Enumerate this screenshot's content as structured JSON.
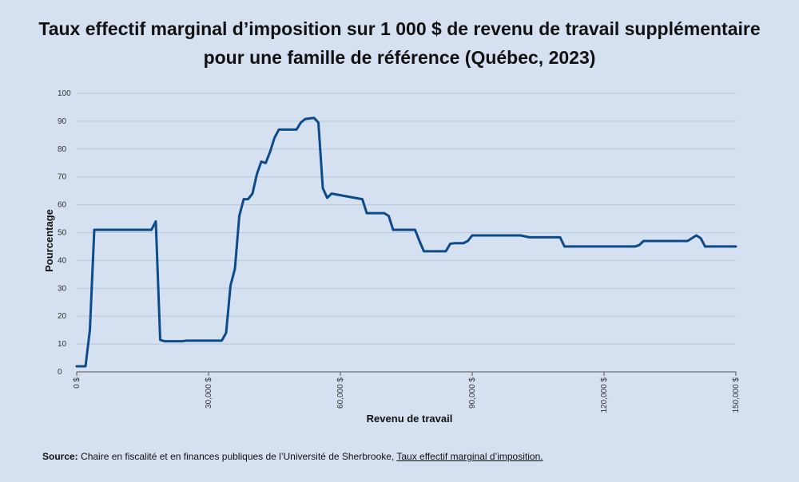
{
  "title_line1": "Taux effectif marginal d’imposition sur 1 000 $ de revenu de travail supplémentaire",
  "title_line2": "pour une famille de référence (Québec, 2023)",
  "source": {
    "label": "Source:",
    "text": " Chaire en fiscalité et en finances publiques de l’Université de Sherbrooke, ",
    "link": "Taux effectif marginal d’imposition."
  },
  "chart_data": {
    "type": "line",
    "xlabel": "Revenu de travail",
    "ylabel": "Pourcentage",
    "xlim": [
      0,
      150000
    ],
    "ylim": [
      0,
      100
    ],
    "xticks": [
      0,
      30000,
      60000,
      90000,
      120000,
      150000
    ],
    "xtick_labels": [
      "0 $",
      "30,000 $",
      "60,000 $",
      "90,000 $",
      "120,000 $",
      "150,000 $"
    ],
    "yticks": [
      0,
      10,
      20,
      30,
      40,
      50,
      60,
      70,
      80,
      90,
      100
    ],
    "ytick_labels": [
      "0",
      "10",
      "20",
      "30",
      "40",
      "50",
      "60",
      "70",
      "80",
      "90",
      "100"
    ],
    "grid": "horizontal",
    "line_color": "#0d4a8a",
    "series": [
      {
        "x": [
          0,
          2000,
          3000,
          4000,
          17000,
          18000,
          19000,
          20000,
          24000,
          25000,
          33000,
          34000,
          35000,
          36000,
          37000,
          38000,
          39000,
          40000,
          41000,
          42000,
          43000,
          44000,
          45000,
          46000,
          50000,
          51000,
          52000,
          53000,
          54000,
          55000,
          56000,
          57000,
          58000,
          65000,
          66000,
          70000,
          71000,
          72000,
          77000,
          78000,
          79000,
          84000,
          85000,
          86000,
          88000,
          89000,
          90000,
          101000,
          103000,
          110000,
          111000,
          127000,
          128000,
          129000,
          139000,
          140000,
          141000,
          142000,
          143000,
          150000
        ],
        "y": [
          2,
          2,
          15,
          51,
          51,
          54,
          11.5,
          11,
          11,
          11.2,
          11.2,
          14,
          31,
          37,
          56,
          62,
          62,
          64,
          71,
          75.5,
          75,
          79,
          84,
          87,
          87,
          89.5,
          90.8,
          91,
          91.2,
          89.5,
          66,
          62.5,
          64,
          62,
          57,
          57,
          56,
          51,
          51,
          47,
          43.3,
          43.3,
          46,
          46.2,
          46.2,
          47,
          49,
          49,
          48.3,
          48.3,
          45,
          45,
          45.5,
          47,
          47,
          48,
          49,
          48,
          45,
          45
        ]
      }
    ]
  }
}
